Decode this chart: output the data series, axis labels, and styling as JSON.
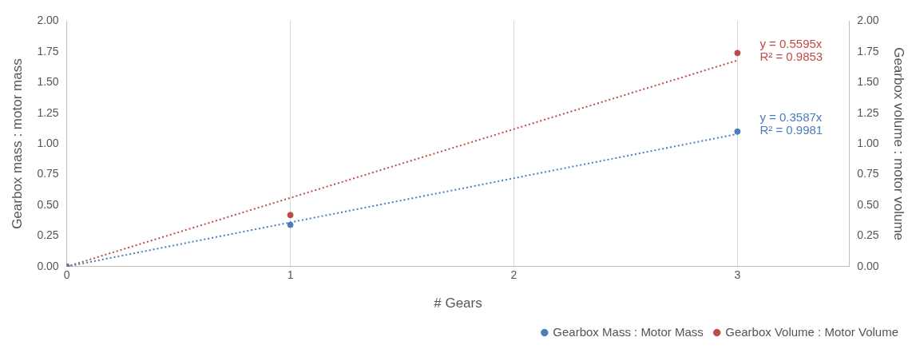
{
  "chart_data": {
    "type": "scatter",
    "xlabel": "# Gears",
    "ylabel": "Gearbox mass : motor mass",
    "y2label": "Gearbox volume : motor volume",
    "xlim": [
      0,
      3.5
    ],
    "xticks": [
      0,
      1,
      2,
      3
    ],
    "ylim": [
      0,
      2
    ],
    "yticks": [
      {
        "value": 0,
        "label": "0.00"
      },
      {
        "value": 0.25,
        "label": "0.25"
      },
      {
        "value": 0.5,
        "label": "0.50"
      },
      {
        "value": 0.75,
        "label": "0.75"
      },
      {
        "value": 1,
        "label": "1.00"
      },
      {
        "value": 1.25,
        "label": "1.25"
      },
      {
        "value": 1.5,
        "label": "1.50"
      },
      {
        "value": 1.75,
        "label": "1.75"
      },
      {
        "value": 2,
        "label": "2.00"
      }
    ],
    "y2lim": [
      0,
      2
    ],
    "y2ticks": [
      {
        "value": 0,
        "label": "0.00"
      },
      {
        "value": 0.25,
        "label": "0.25"
      },
      {
        "value": 0.5,
        "label": "0.50"
      },
      {
        "value": 0.75,
        "label": "0.75"
      },
      {
        "value": 1,
        "label": "1.00"
      },
      {
        "value": 1.25,
        "label": "1.25"
      },
      {
        "value": 1.5,
        "label": "1.50"
      },
      {
        "value": 1.75,
        "label": "1.75"
      },
      {
        "value": 2,
        "label": "2.00"
      }
    ],
    "grid": "x",
    "legend": "bottom right",
    "marker": "circle",
    "series": [
      {
        "name": "Gearbox Mass : Motor Mass",
        "color": "#4a7ebb",
        "x": [
          0,
          1,
          3
        ],
        "values": [
          0,
          0.34,
          1.1
        ]
      },
      {
        "name": "Gearbox Volume : Motor Volume",
        "color": "#be4b48",
        "x": [
          0,
          1,
          3
        ],
        "values": [
          0,
          0.42,
          1.74
        ]
      },
      {
        "type": "line",
        "color": "#4a7ebb",
        "line_style": "dotted",
        "marker": "none",
        "x": [
          0,
          3
        ],
        "values": [
          0,
          1.08
        ]
      },
      {
        "type": "line",
        "color": "#be4b48",
        "line_style": "dotted",
        "marker": "none",
        "x": [
          0,
          3
        ],
        "values": [
          0,
          1.68
        ]
      }
    ],
    "annotations": [
      "y = 0.3587x",
      "R² = 0.9981",
      "y = 0.5595x",
      "R² = 0.9853"
    ]
  }
}
